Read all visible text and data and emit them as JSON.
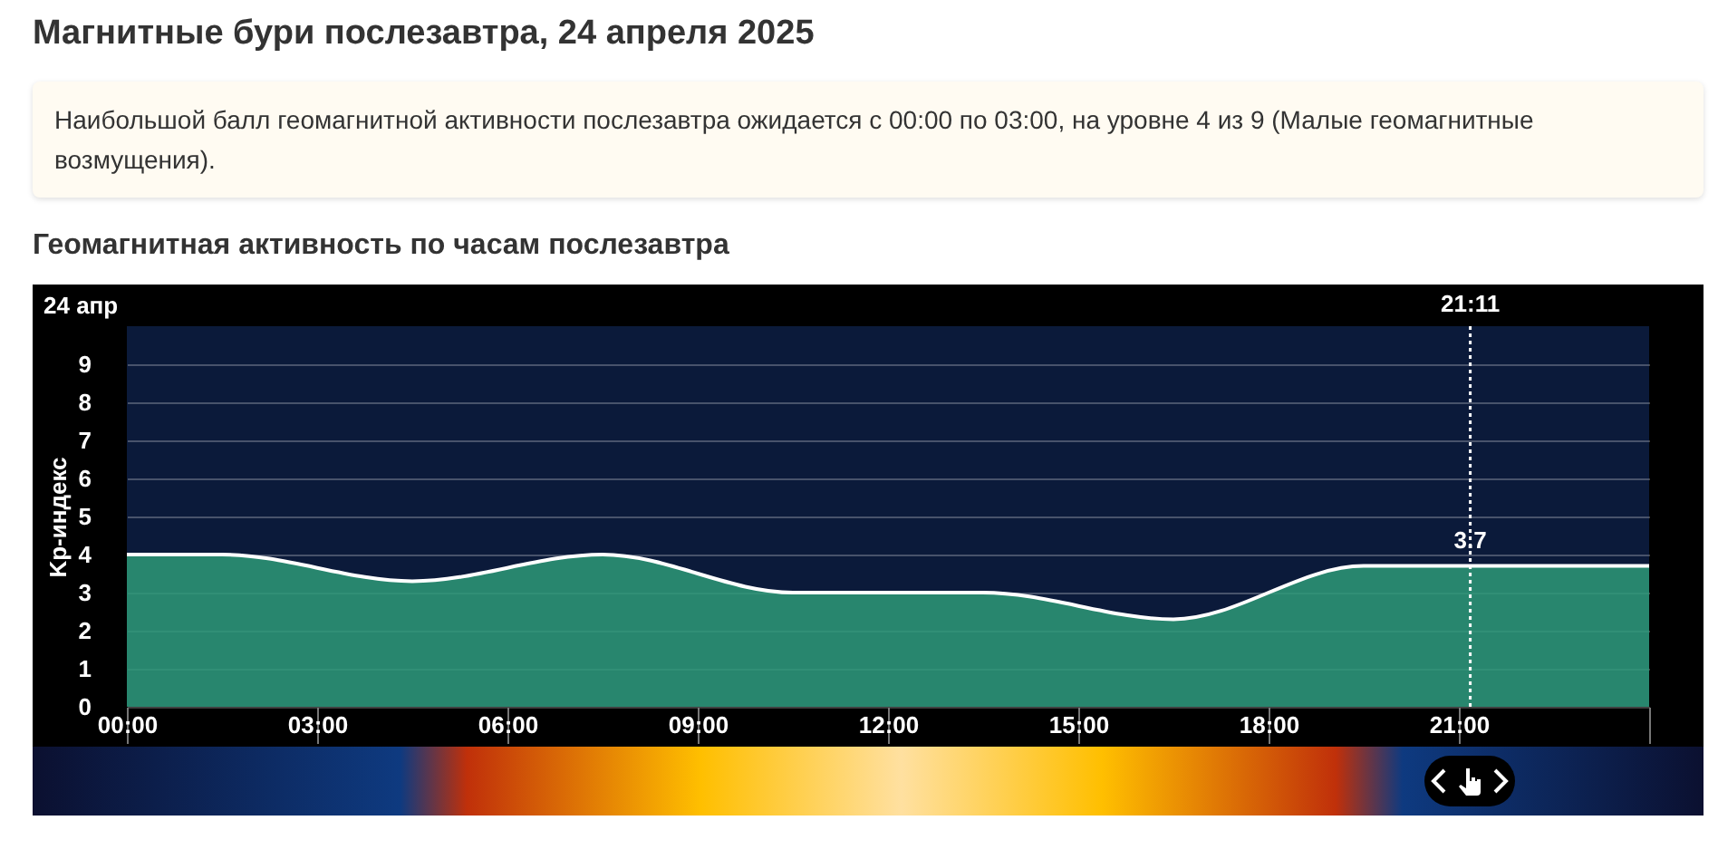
{
  "chart_data": {
    "type": "area",
    "title": "Магнитные бури послезавтра, 24 апреля 2025",
    "subtitle": "Геомагнитная активность по часам послезавтра",
    "ylabel": "Kp-индекс",
    "annotations": [
      "Наибольшой балл геомагнитной активности послезавтра ожидается с 00:00 по 03:00, на уровне 4 из 9 (Малые геомагнитные возмущения).",
      "24 апр",
      {
        "text": "3.7",
        "x": 21.18,
        "y": 3.7
      }
    ],
    "x": [
      0,
      1.5,
      4.5,
      7.5,
      10.5,
      13.5,
      16.5,
      19.5,
      22.5,
      24
    ],
    "series": [
      {
        "color": "#2e9a78",
        "values": [
          4,
          4,
          3.3,
          4,
          3,
          3,
          2.3,
          3.7,
          3.7,
          3.7
        ]
      }
    ],
    "xlim": [
      0,
      24
    ],
    "xticks": [
      {
        "value": 0,
        "label": "00:00"
      },
      {
        "value": 3,
        "label": "03:00"
      },
      {
        "value": 6,
        "label": "06:00"
      },
      {
        "value": 9,
        "label": "09:00"
      },
      {
        "value": 12,
        "label": "12:00"
      },
      {
        "value": 15,
        "label": "15:00"
      },
      {
        "value": 18,
        "label": "18:00"
      },
      {
        "value": 21,
        "label": "21:00"
      },
      {
        "value": 24,
        "label": null
      }
    ],
    "ylim": [
      0,
      10
    ],
    "yticks": [
      0,
      1,
      2,
      3,
      4,
      5,
      6,
      7,
      8,
      9
    ],
    "grid": "y",
    "legend": false,
    "ref_lines": [
      {
        "axis": "x",
        "value": 21.18,
        "label": "21:11",
        "line_style": "dotted"
      }
    ]
  }
}
